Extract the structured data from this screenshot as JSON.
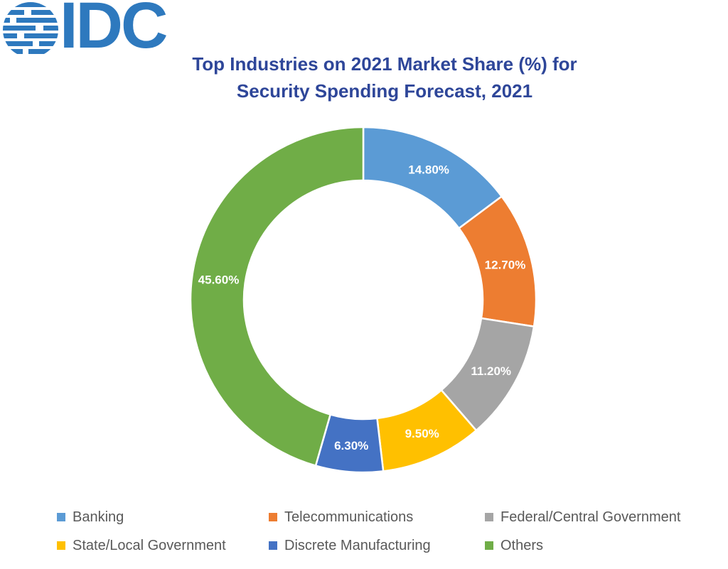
{
  "logo": {
    "text": "IDC"
  },
  "title": {
    "line1": "Top Industries on 2021 Market Share (%) for",
    "line2": "Security Spending Forecast, 2021"
  },
  "chart_data": {
    "type": "pie",
    "subtype": "donut",
    "title": "Top Industries on 2021 Market Share (%) for Security Spending Forecast, 2021",
    "start_angle_deg": 0,
    "direction": "clockwise",
    "inner_radius_ratio": 0.69,
    "legend_position": "bottom",
    "data_label_color": "#FFFFFF",
    "segments": [
      {
        "label": "Banking",
        "value": 14.8,
        "display": "14.80%",
        "color": "#5B9BD5"
      },
      {
        "label": "Telecommunications",
        "value": 12.7,
        "display": "12.70%",
        "color": "#ED7D31"
      },
      {
        "label": "Federal/Central Government",
        "value": 11.2,
        "display": "11.20%",
        "color": "#A5A5A5"
      },
      {
        "label": "State/Local Government",
        "value": 9.5,
        "display": "9.50%",
        "color": "#FFC000"
      },
      {
        "label": "Discrete Manufacturing",
        "value": 6.3,
        "display": "6.30%",
        "color": "#4472C4"
      },
      {
        "label": "Others",
        "value": 45.6,
        "display": "45.60%",
        "color": "#70AD47"
      }
    ]
  },
  "colors": {
    "title_text": "#2E4699",
    "logo_blue": "#2E79BE",
    "legend_text": "#595959",
    "background": "#FFFFFF"
  }
}
